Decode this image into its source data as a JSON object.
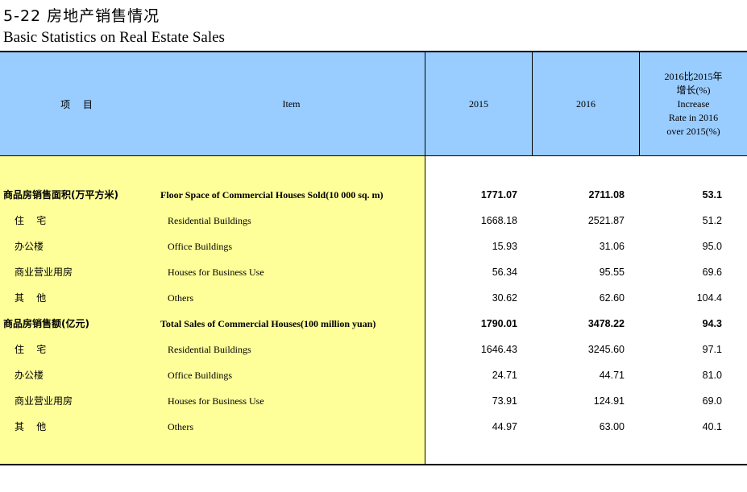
{
  "title_cn": "5-22  房地产销售情况",
  "title_en": "Basic Statistics on Real Estate Sales",
  "header": {
    "item_cn": "项 目",
    "item_en": "Item",
    "col_2015": "2015",
    "col_2016": "2016",
    "increase_lines": [
      "2016比2015年",
      "增长(%)",
      "Increase",
      "Rate in 2016",
      "over 2015(%)"
    ]
  },
  "rows": [
    {
      "cn": "商品房销售面积(万平方米)",
      "en": "Floor Space of Commercial Houses Sold(10 000 sq. m)",
      "v2015": "1771.07",
      "v2016": "2711.08",
      "rate": "53.1",
      "bold": true
    },
    {
      "cn": "住    宅",
      "en": "Residential Buildings",
      "v2015": "1668.18",
      "v2016": "2521.87",
      "rate": "51.2",
      "bold": false
    },
    {
      "cn": "办公楼",
      "en": "Office Buildings",
      "v2015": "15.93",
      "v2016": "31.06",
      "rate": "95.0",
      "bold": false
    },
    {
      "cn": "商业营业用房",
      "en": "Houses for Business Use",
      "v2015": "56.34",
      "v2016": "95.55",
      "rate": "69.6",
      "bold": false
    },
    {
      "cn": "其    他",
      "en": "Others",
      "v2015": "30.62",
      "v2016": "62.60",
      "rate": "104.4",
      "bold": false
    },
    {
      "cn": "商品房销售额(亿元)",
      "en": "Total Sales of Commercial Houses(100 million yuan)",
      "v2015": "1790.01",
      "v2016": "3478.22",
      "rate": "94.3",
      "bold": true
    },
    {
      "cn": "住    宅",
      "en": "Residential Buildings",
      "v2015": "1646.43",
      "v2016": "3245.60",
      "rate": "97.1",
      "bold": false
    },
    {
      "cn": "办公楼",
      "en": "Office Buildings",
      "v2015": "24.71",
      "v2016": "44.71",
      "rate": "81.0",
      "bold": false
    },
    {
      "cn": "商业营业用房",
      "en": "Houses for Business Use",
      "v2015": "73.91",
      "v2016": "124.91",
      "rate": "69.0",
      "bold": false
    },
    {
      "cn": "其    他",
      "en": "Others",
      "v2015": "44.97",
      "v2016": "63.00",
      "rate": "40.1",
      "bold": false
    }
  ]
}
